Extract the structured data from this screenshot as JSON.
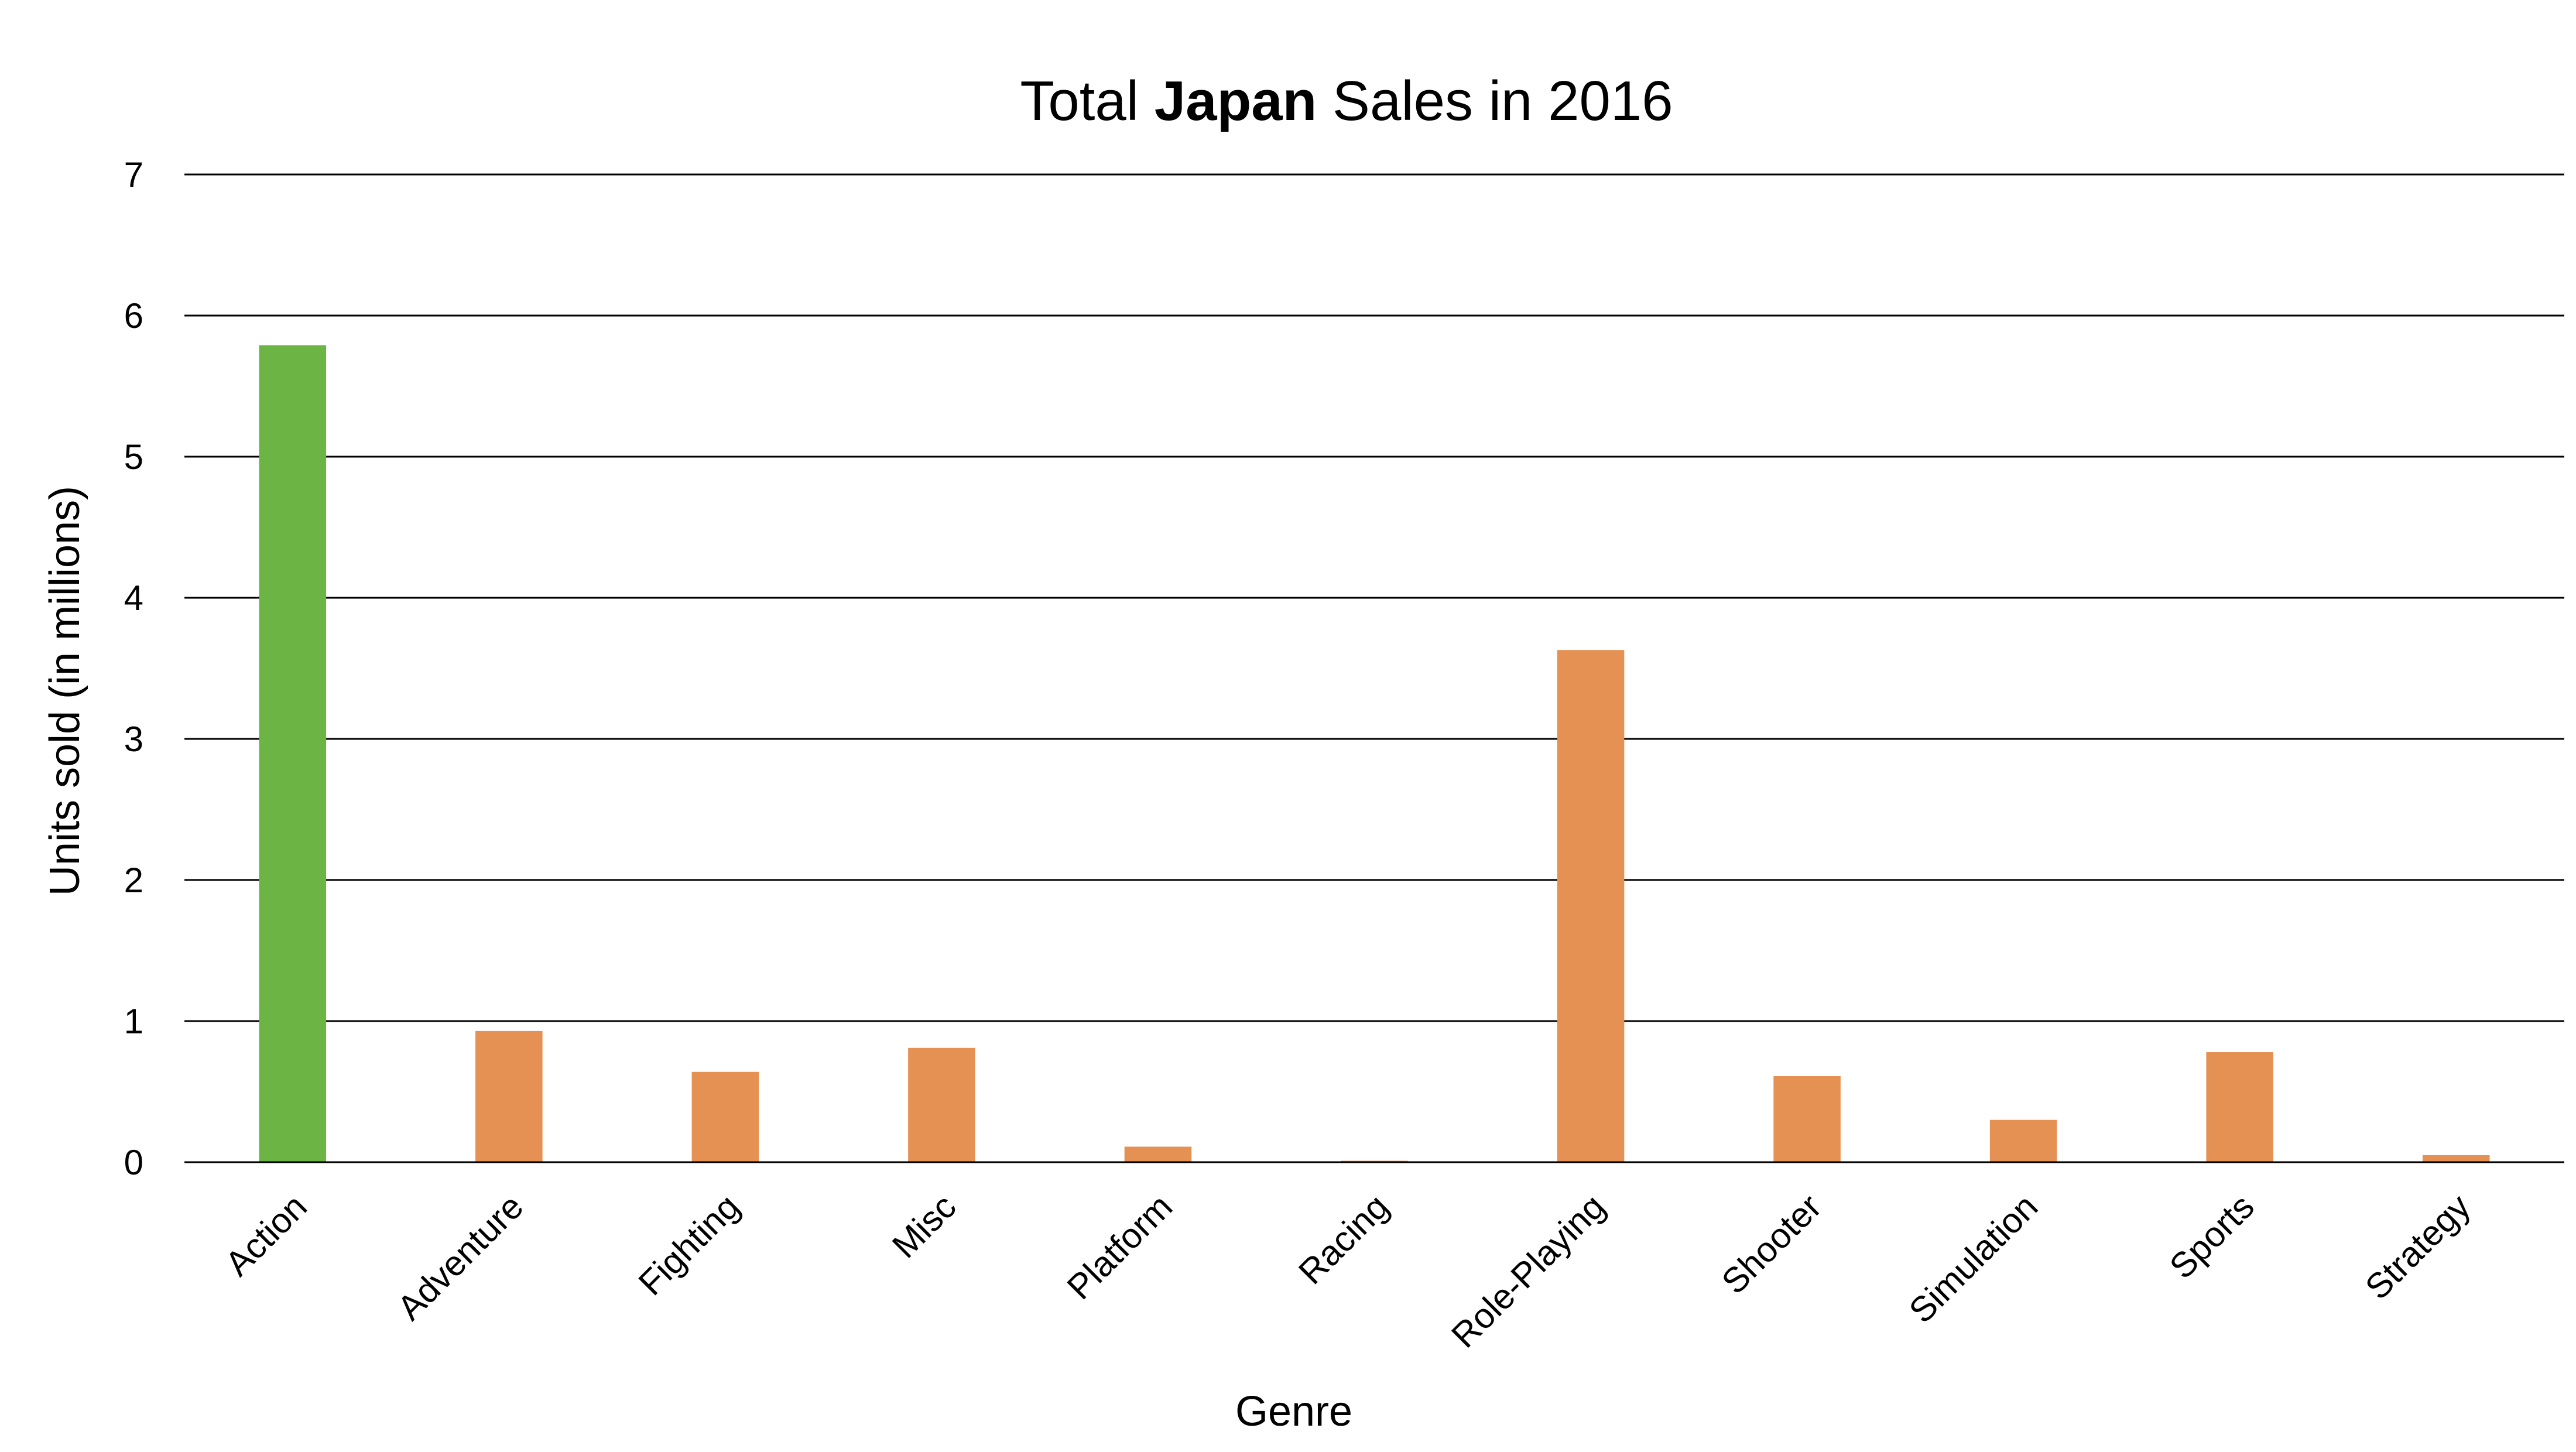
{
  "chart_data": {
    "type": "bar",
    "title": {
      "prefix": "Total ",
      "emphasis": "Japan",
      "suffix": " Sales in 2016"
    },
    "xlabel": "Genre",
    "ylabel": "Units sold (in millions)",
    "ylim": [
      0,
      7
    ],
    "yticks": [
      "0",
      "1",
      "2",
      "3",
      "4",
      "5",
      "6",
      "7"
    ],
    "grid": true,
    "categories": [
      "Action",
      "Adventure",
      "Fighting",
      "Misc",
      "Platform",
      "Racing",
      "Role-Playing",
      "Shooter",
      "Simulation",
      "Sports",
      "Strategy"
    ],
    "values": [
      5.79,
      0.93,
      0.64,
      0.81,
      0.11,
      0.01,
      3.63,
      0.61,
      0.3,
      0.78,
      0.05
    ],
    "colors": {
      "highlight": "#6cb443",
      "default": "#e69154"
    },
    "highlight_index": 0
  }
}
